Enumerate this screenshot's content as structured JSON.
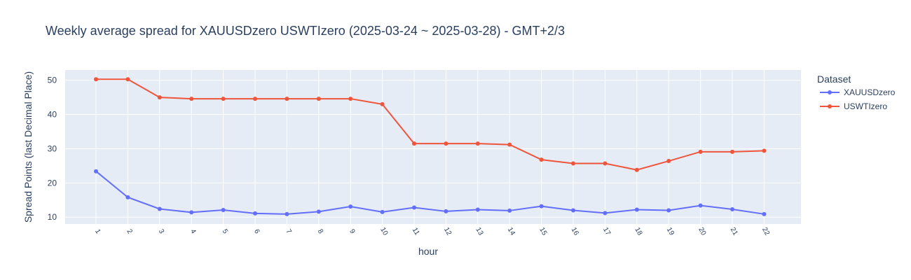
{
  "chart_data": {
    "type": "line",
    "title": "Weekly average spread for  XAUUSDzero USWTIzero (2025-03-24 ~ 2025-03-28) - GMT+2/3",
    "xlabel": "hour",
    "ylabel": "Spread Points (last Decimal Place)",
    "categories": [
      "1",
      "2",
      "3",
      "4",
      "5",
      "6",
      "7",
      "8",
      "9",
      "10",
      "11",
      "12",
      "13",
      "14",
      "15",
      "16",
      "17",
      "18",
      "19",
      "20",
      "21",
      "22"
    ],
    "ylim": [
      8,
      53
    ],
    "yticks": [
      10,
      20,
      30,
      40,
      50
    ],
    "grid": true,
    "legend_title": "Dataset",
    "legend_position": "right",
    "series": [
      {
        "name": "XAUUSDzero",
        "color": "#636efa",
        "values": [
          23.4,
          15.8,
          12.4,
          11.4,
          12.1,
          11.1,
          10.9,
          11.6,
          13.1,
          11.5,
          12.8,
          11.7,
          12.2,
          11.9,
          13.2,
          12.0,
          11.2,
          12.2,
          12.0,
          13.4,
          12.3,
          10.9
        ]
      },
      {
        "name": "USWTIzero",
        "color": "#ef553b",
        "values": [
          50.3,
          50.3,
          45.0,
          44.6,
          44.6,
          44.6,
          44.6,
          44.6,
          44.6,
          43.0,
          31.5,
          31.5,
          31.5,
          31.2,
          26.8,
          25.7,
          25.7,
          23.8,
          26.4,
          29.1,
          29.1,
          29.4
        ]
      }
    ]
  }
}
